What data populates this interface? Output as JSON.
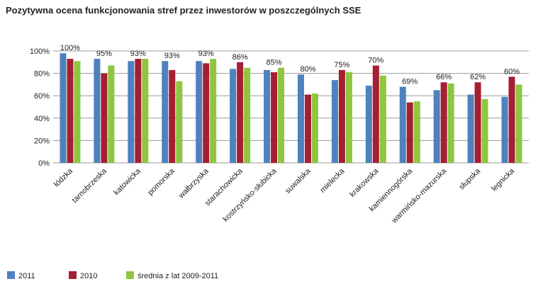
{
  "chart_data": {
    "type": "bar",
    "title": "Pozytywna ocena funkcjonowania stref przez inwestorów w poszczególnych SSE",
    "xlabel": "",
    "ylabel": "",
    "ylim": [
      0,
      100
    ],
    "yticks": [
      "0%",
      "20%",
      "40%",
      "60%",
      "80%",
      "100%"
    ],
    "ytick_values": [
      0,
      20,
      40,
      60,
      80,
      100
    ],
    "grid": true,
    "legend_position": "bottom",
    "categories": [
      "łódzka",
      "tarnobrzeska",
      "katowicka",
      "pomorska",
      "wałbrzyska",
      "starachowicka",
      "kostrzyńsko-słubicka",
      "suwalska",
      "mielecka",
      "krakowska",
      "kamiennogórska",
      "warmińsko-mazurska",
      "słupska",
      "legnicka"
    ],
    "series": [
      {
        "name": "2011",
        "color": "#4f81bd",
        "values": [
          98,
          93,
          91,
          91,
          91,
          84,
          83,
          79,
          74,
          69,
          68,
          65,
          61,
          59
        ]
      },
      {
        "name": "2010",
        "color": "#a51f33",
        "values": [
          93,
          80,
          93,
          83,
          89,
          90,
          81,
          61,
          83,
          87,
          54,
          72,
          72,
          77
        ]
      },
      {
        "name": "średnia z lat 2009-2011",
        "color": "#8fc63f",
        "values": [
          91,
          87,
          93,
          73,
          93,
          85,
          85,
          62,
          81,
          78,
          55,
          71,
          57,
          70
        ]
      }
    ],
    "annotations": [
      "100%",
      "95%",
      "93%",
      "93%",
      "93%",
      "86%",
      "85%",
      "80%",
      "75%",
      "70%",
      "69%",
      "66%",
      "62%",
      "60%"
    ]
  }
}
